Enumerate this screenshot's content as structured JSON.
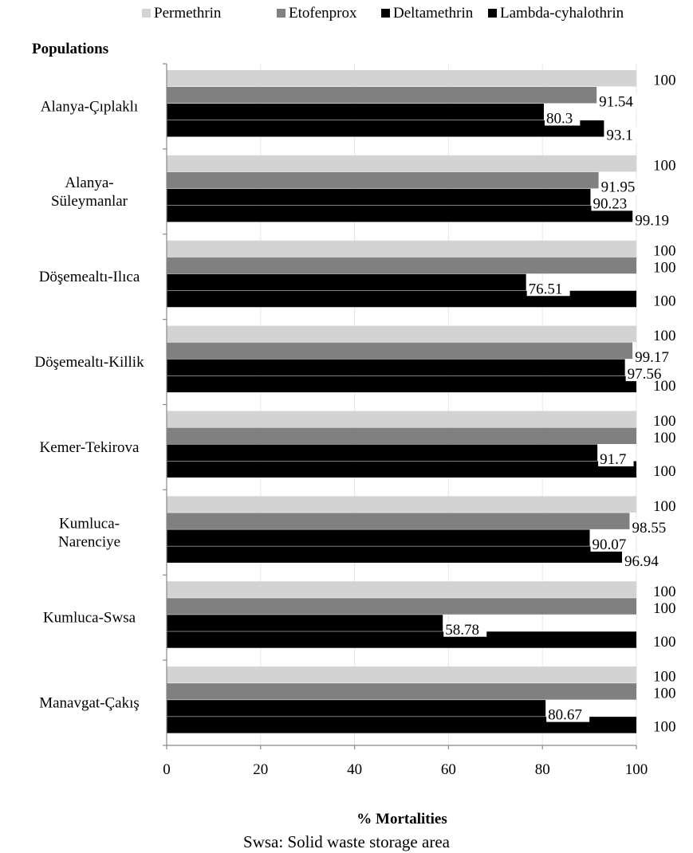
{
  "chart_data": {
    "type": "bar",
    "orientation": "horizontal",
    "ylabel": "Populations",
    "xlabel": "% Mortalities",
    "xlim": [
      0,
      100
    ],
    "x_ticks": [
      "0",
      "20",
      "40",
      "60",
      "80",
      "100"
    ],
    "legend_position": "top",
    "categories": [
      [
        "Alanya-Çıplaklı"
      ],
      [
        "Alanya-",
        "Süleymanlar"
      ],
      [
        "Döşemealtı-Ilıca"
      ],
      [
        "Döşemealtı-Killik"
      ],
      [
        "Kemer-Tekirova"
      ],
      [
        "Kumluca-",
        "Narenciye"
      ],
      [
        "Kumluca-Swsa"
      ],
      [
        "Manavgat-Çakış"
      ]
    ],
    "series": [
      {
        "name": "Permethrin",
        "color": "#d3d3d3",
        "values": [
          100,
          100,
          100,
          100,
          100,
          100,
          100,
          100
        ]
      },
      {
        "name": "Etofenprox",
        "color": "#808080",
        "values": [
          91.54,
          91.95,
          100,
          99.17,
          100,
          98.55,
          100,
          100
        ]
      },
      {
        "name": "Deltamethrin",
        "color": "#000000",
        "values": [
          80.3,
          90.23,
          76.51,
          97.56,
          91.7,
          90.07,
          58.78,
          80.67
        ]
      },
      {
        "name": "Lambda-cyhalothrin",
        "color": "#000000",
        "values": [
          93.1,
          99.19,
          100,
          100,
          100,
          96.94,
          100,
          100
        ]
      }
    ]
  },
  "footnote": "Swsa: Solid waste storage area"
}
